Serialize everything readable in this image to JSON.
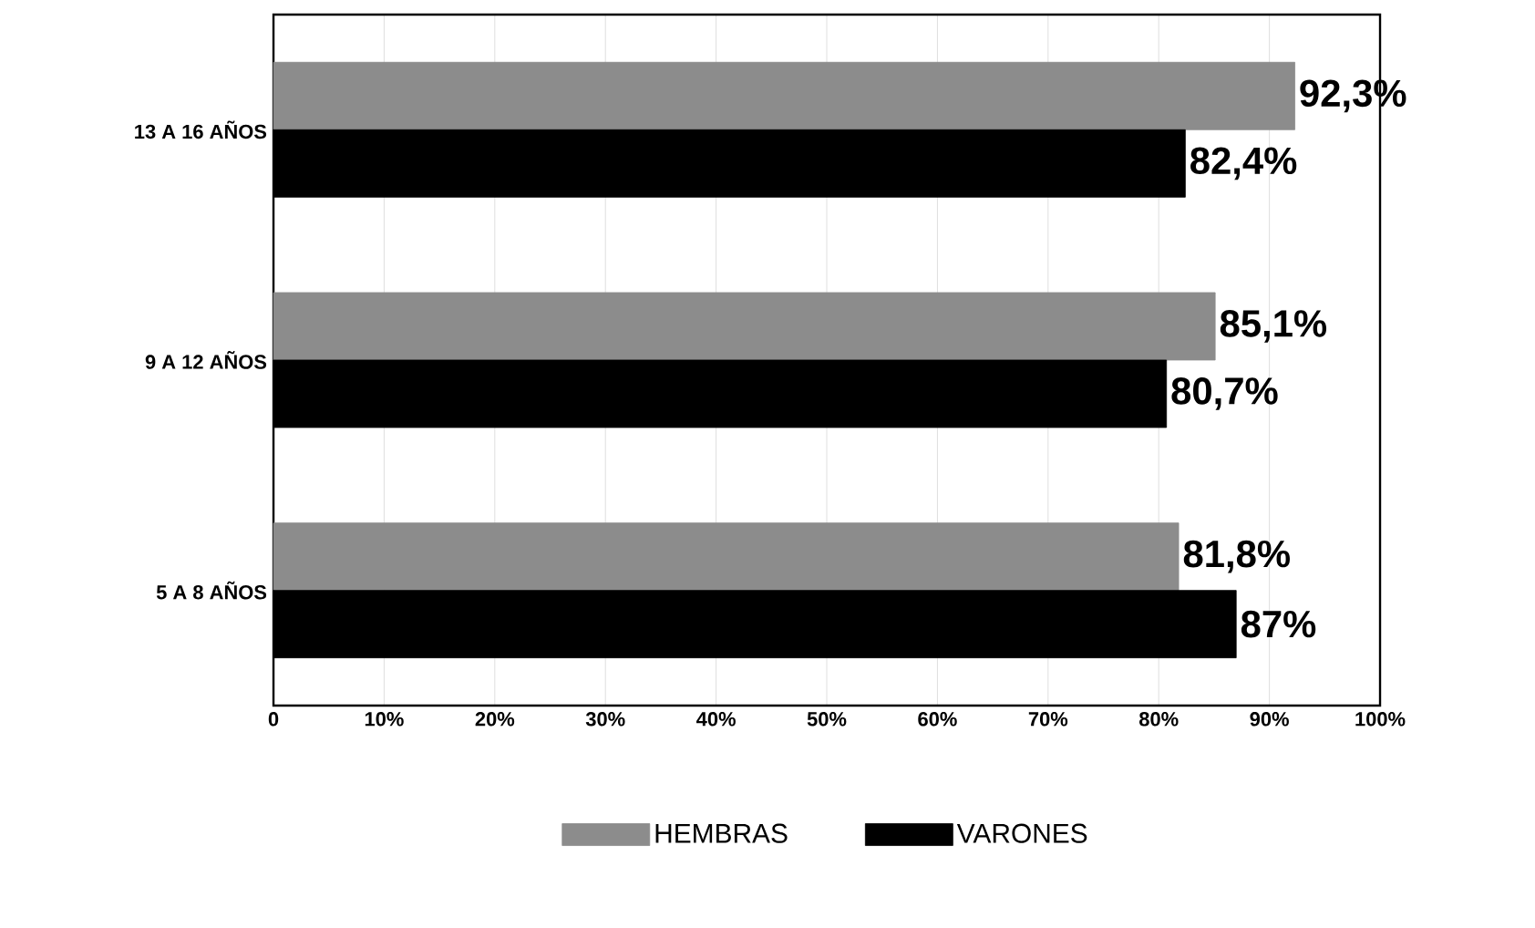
{
  "chart_data": {
    "type": "bar",
    "orientation": "horizontal",
    "categories": [
      "13 A 16 AÑOS",
      "9 A 12 AÑOS",
      "5 A 8 AÑOS"
    ],
    "series": [
      {
        "name": "HEMBRAS",
        "color": "#8c8c8c",
        "values": [
          92.3,
          85.1,
          81.8
        ],
        "value_labels": [
          "92,3%",
          "85,1%",
          "81,8%"
        ]
      },
      {
        "name": "VARONES",
        "color": "#000000",
        "values": [
          82.4,
          80.7,
          87
        ],
        "value_labels": [
          "82,4%",
          "80,7%",
          "87%"
        ]
      }
    ],
    "xlim": [
      0,
      100
    ],
    "xticks": [
      0,
      {
        "value": 10,
        "label": "10%"
      },
      {
        "value": 20,
        "label": "20%"
      },
      {
        "value": 30,
        "label": "30%"
      },
      {
        "value": 40,
        "label": "40%"
      },
      {
        "value": 50,
        "label": "50%"
      },
      {
        "value": 60,
        "label": "60%"
      },
      {
        "value": 70,
        "label": "70%"
      },
      {
        "value": 80,
        "label": "80%"
      },
      {
        "value": 90,
        "label": "90%"
      },
      {
        "value": 100,
        "label": "100%"
      }
    ],
    "grid": "x",
    "legend": "bottom"
  }
}
